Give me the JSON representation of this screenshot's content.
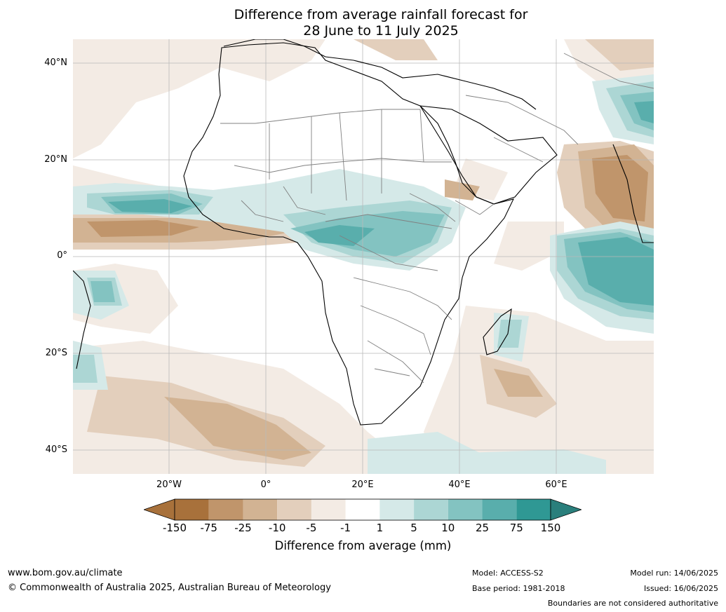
{
  "title": {
    "line1": "Difference from average rainfall forecast for",
    "line2": "28 June to 11 July 2025"
  },
  "map": {
    "lat_labels": [
      "40°N",
      "20°N",
      "0°",
      "20°S",
      "40°S"
    ],
    "lon_labels": [
      "20°W",
      "0°",
      "20°E",
      "40°E",
      "60°E"
    ]
  },
  "colorbar": {
    "ticks": [
      "-150",
      "-75",
      "-25",
      "-10",
      "-5",
      "-1",
      "1",
      "5",
      "10",
      "25",
      "75",
      "150"
    ],
    "colors": [
      "#a8713b",
      "#c0956b",
      "#d2b393",
      "#e3cfbc",
      "#f3ebe4",
      "#ffffff",
      "#d5e9e8",
      "#acd6d4",
      "#83c3c1",
      "#59aeac",
      "#2f9894"
    ],
    "under_color": "#a8713b",
    "over_color": "#2a7f7c",
    "label": "Difference from average (mm)"
  },
  "footer": {
    "website": "www.bom.gov.au/climate",
    "copyright": "© Commonwealth of Australia 2025, Australian Bureau of Meteorology",
    "model": "Model: ACCESS-S2",
    "base_period": "Base period: 1981-2018",
    "model_run": "Model run: 14/06/2025",
    "issued": "Issued: 16/06/2025",
    "disclaimer": "Boundaries are not considered authoritative"
  }
}
